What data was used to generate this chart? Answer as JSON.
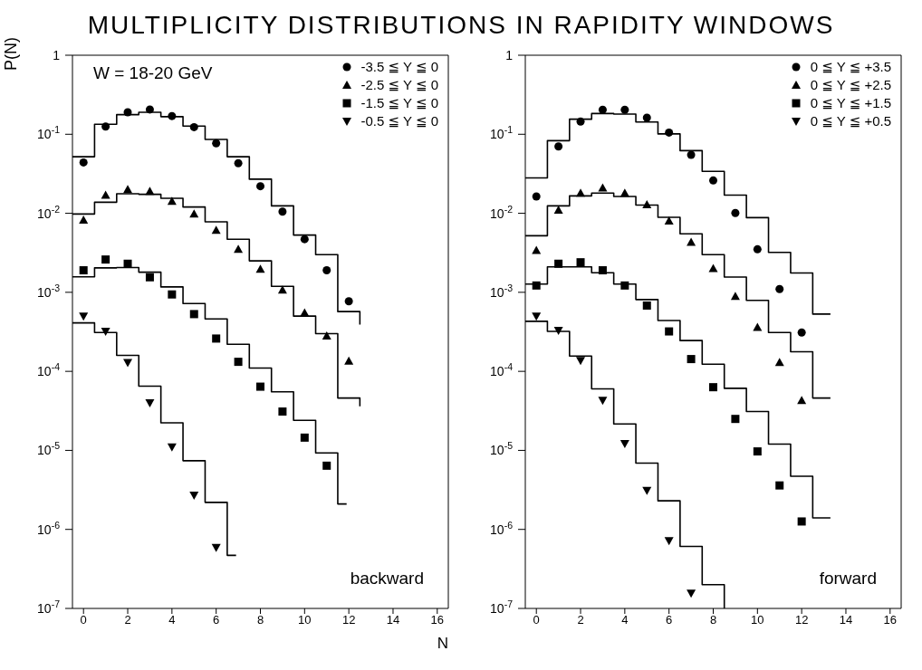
{
  "chart_data": [
    {
      "type": "scatter",
      "title": "MULTIPLICITY DISTRIBUTIONS IN RAPIDITY WINDOWS",
      "xlabel": "N",
      "ylabel": "P(N)",
      "log": "y",
      "legend": "top right",
      "xlim": [
        -0.5,
        16.5
      ],
      "xticks": [
        0,
        2,
        4,
        6,
        8,
        10,
        12,
        14,
        16
      ],
      "ylim": [
        1e-07,
        1
      ],
      "yticks": [
        1,
        {
          "value": 0.1,
          "label": "10$^{-1}$"
        },
        {
          "value": 0.01,
          "label": "10$^{-2}$"
        },
        {
          "value": 0.001,
          "label": "10$^{-3}$"
        },
        {
          "value": 0.0001,
          "label": "10$^{-4}$"
        },
        {
          "value": 1e-05,
          "label": "10$^{-5}$"
        },
        {
          "value": 1e-06,
          "label": "10$^{-6}$"
        },
        {
          "value": 1e-07,
          "label": "10$^{-7}$"
        }
      ],
      "annotations": [
        "W = 18-20 GeV",
        "backward"
      ],
      "series": [
        {
          "name": "-3.5 ≦ Y ≦ 0",
          "color": "#000000",
          "marker": "circle",
          "x": [
            0,
            1,
            2,
            3,
            4,
            5,
            6,
            7,
            8,
            9,
            10,
            11,
            12
          ],
          "values": [
            0.044,
            0.125,
            0.19,
            0.206,
            0.17,
            0.123,
            0.077,
            0.043,
            0.022,
            0.0105,
            0.0047,
            0.0019,
            0.00077
          ]
        },
        {
          "name": "-2.5 ≦ Y ≦ 0",
          "color": "#000000",
          "marker": "triangle",
          "x": [
            0,
            1,
            2,
            3,
            4,
            5,
            6,
            7,
            8,
            9,
            10,
            11,
            12
          ],
          "values": [
            0.0082,
            0.017,
            0.02,
            0.019,
            0.0142,
            0.0098,
            0.0061,
            0.0035,
            0.00196,
            0.00107,
            0.00055,
            0.00028,
            0.000135
          ]
        },
        {
          "name": "-1.5 ≦ Y ≦ 0",
          "color": "#000000",
          "marker": "square",
          "x": [
            0,
            1,
            2,
            3,
            4,
            5,
            6,
            7,
            8,
            9,
            10,
            11
          ],
          "values": [
            0.0019,
            0.0026,
            0.0023,
            0.00155,
            0.00094,
            0.00053,
            0.00026,
            0.000132,
            6.4e-05,
            3.1e-05,
            1.45e-05,
            6.4e-06
          ]
        },
        {
          "name": "-0.5 ≦ Y ≦ 0",
          "color": "#000000",
          "marker": "triangle-down",
          "x": [
            0,
            1,
            2,
            3,
            4,
            5,
            6
          ],
          "values": [
            0.0005,
            0.00032,
            0.000129,
            4e-05,
            1.1e-05,
            2.7e-06,
            5.9e-07
          ]
        },
        {
          "type": "step",
          "color": "#000000",
          "x": [
            -0.5,
            0.5,
            1.5,
            2.5,
            3.5,
            4.5,
            5.5,
            6.5,
            7.5,
            8.5,
            9.5,
            10.5,
            11.5,
            12.5
          ],
          "values": [
            0.052,
            0.134,
            0.177,
            0.19,
            0.167,
            0.127,
            0.086,
            0.052,
            0.027,
            0.0124,
            0.0053,
            0.003,
            0.00057,
            0.00039
          ]
        },
        {
          "type": "step",
          "color": "#000000",
          "x": [
            -0.5,
            0.5,
            1.5,
            2.5,
            3.5,
            4.5,
            5.5,
            6.5,
            7.5,
            8.5,
            9.5,
            10.5,
            11.5,
            12.5
          ],
          "values": [
            0.0098,
            0.0138,
            0.0177,
            0.0174,
            0.0155,
            0.012,
            0.0078,
            0.0047,
            0.0025,
            0.00119,
            0.0005,
            0.0003,
            4.6e-05,
            3.6e-05
          ]
        },
        {
          "type": "step",
          "color": "#000000",
          "x": [
            -0.5,
            0.5,
            1.5,
            2.5,
            3.5,
            4.5,
            5.5,
            6.5,
            7.5,
            8.5,
            9.5,
            10.5,
            11.5,
            11.9
          ],
          "values": [
            0.00157,
            0.00204,
            0.00206,
            0.0018,
            0.00117,
            0.00072,
            0.00046,
            0.00022,
            0.00011,
            5.5e-05,
            2.4e-05,
            9.3e-06,
            2.1e-06,
            2.1e-06
          ]
        },
        {
          "type": "step",
          "color": "#000000",
          "x": [
            -0.5,
            0.5,
            1.5,
            2.5,
            3.5,
            4.5,
            5.5,
            6.5,
            6.9
          ],
          "values": [
            0.00041,
            0.00031,
            0.000159,
            6.5e-05,
            2.23e-05,
            7.4e-06,
            2.2e-06,
            4.7e-07,
            4.7e-07
          ]
        }
      ]
    },
    {
      "type": "scatter",
      "log": "y",
      "legend": "top right",
      "xlim": [
        -0.5,
        16.5
      ],
      "xticks": [
        0,
        2,
        4,
        6,
        8,
        10,
        12,
        14,
        16
      ],
      "ylim": [
        1e-07,
        1
      ],
      "yticks": [
        1,
        {
          "value": 0.1,
          "label": "10$^{-1}$"
        },
        {
          "value": 0.01,
          "label": "10$^{-2}$"
        },
        {
          "value": 0.001,
          "label": "10$^{-3}$"
        },
        {
          "value": 0.0001,
          "label": "10$^{-4}$"
        },
        {
          "value": 1e-05,
          "label": "10$^{-5}$"
        },
        {
          "value": 1e-06,
          "label": "10$^{-6}$"
        },
        {
          "value": 1e-07,
          "label": "10$^{-7}$"
        }
      ],
      "annotations": [
        "forward"
      ],
      "series": [
        {
          "name": "0 ≦ Y ≦ +3.5",
          "color": "#000000",
          "marker": "circle",
          "x": [
            0,
            1,
            2,
            3,
            4,
            5,
            6,
            7,
            8,
            9,
            10,
            11,
            12
          ],
          "values": [
            0.0163,
            0.07,
            0.145,
            0.204,
            0.204,
            0.162,
            0.105,
            0.055,
            0.026,
            0.0101,
            0.0035,
            0.0011,
            0.00031
          ]
        },
        {
          "name": "0 ≦ Y ≦ +2.5",
          "color": "#000000",
          "marker": "triangle",
          "x": [
            0,
            1,
            2,
            3,
            4,
            5,
            6,
            7,
            8,
            9,
            10,
            11,
            12
          ],
          "values": [
            0.0034,
            0.011,
            0.018,
            0.021,
            0.018,
            0.0129,
            0.008,
            0.0043,
            0.002,
            0.00089,
            0.00036,
            0.00013,
            4.3e-05
          ]
        },
        {
          "name": "0 ≦ Y ≦ +1.5",
          "color": "#000000",
          "marker": "square",
          "x": [
            0,
            1,
            2,
            3,
            4,
            5,
            6,
            7,
            8,
            9,
            10,
            11,
            12
          ],
          "values": [
            0.00122,
            0.0023,
            0.0024,
            0.0019,
            0.00122,
            0.00068,
            0.00032,
            0.000143,
            6.3e-05,
            2.5e-05,
            9.7e-06,
            3.6e-06,
            1.26e-06
          ]
        },
        {
          "name": "0 ≦ Y ≦ +0.5",
          "color": "#000000",
          "marker": "triangle-down",
          "x": [
            0,
            1,
            2,
            3,
            4,
            5,
            6,
            7
          ],
          "values": [
            0.0005,
            0.00033,
            0.000137,
            4.3e-05,
            1.22e-05,
            3.1e-06,
            7.2e-07,
            1.56e-07
          ]
        },
        {
          "type": "step",
          "color": "#000000",
          "x": [
            -0.5,
            0.5,
            1.5,
            2.5,
            3.5,
            4.5,
            5.5,
            6.5,
            7.5,
            8.5,
            9.5,
            10.5,
            11.5,
            12.5,
            13.3
          ],
          "values": [
            0.028,
            0.083,
            0.155,
            0.183,
            0.18,
            0.143,
            0.101,
            0.062,
            0.034,
            0.017,
            0.0088,
            0.0032,
            0.00176,
            0.00053,
            0.00053
          ]
        },
        {
          "type": "step",
          "color": "#000000",
          "x": [
            -0.5,
            0.5,
            1.5,
            2.5,
            3.5,
            4.5,
            5.5,
            6.5,
            7.5,
            8.5,
            9.5,
            10.5,
            11.5,
            12.5,
            13.3
          ],
          "values": [
            0.0052,
            0.0124,
            0.0166,
            0.018,
            0.0163,
            0.0127,
            0.0089,
            0.0055,
            0.003,
            0.00156,
            0.00079,
            0.00031,
            0.000177,
            4.6e-05,
            4.6e-05
          ]
        },
        {
          "type": "step",
          "color": "#000000",
          "x": [
            -0.5,
            0.5,
            1.5,
            2.5,
            3.5,
            4.5,
            5.5,
            6.5,
            7.5,
            8.5,
            9.5,
            10.5,
            11.5,
            12.5,
            13.3
          ],
          "values": [
            0.00127,
            0.0021,
            0.0021,
            0.00177,
            0.00127,
            0.00081,
            0.00044,
            0.000245,
            0.000123,
            6.1e-05,
            3.1e-05,
            1.2e-05,
            4.7e-06,
            1.4e-06,
            1.4e-06
          ]
        },
        {
          "type": "step",
          "color": "#000000",
          "x": [
            -0.5,
            0.5,
            1.5,
            2.5,
            3.5,
            4.5,
            5.5,
            6.5,
            7.5,
            8.5
          ],
          "values": [
            0.00043,
            0.00032,
            0.000156,
            6e-05,
            2.16e-05,
            6.9e-06,
            2.3e-06,
            6.1e-07,
            2e-07,
            1e-07
          ]
        }
      ]
    }
  ]
}
